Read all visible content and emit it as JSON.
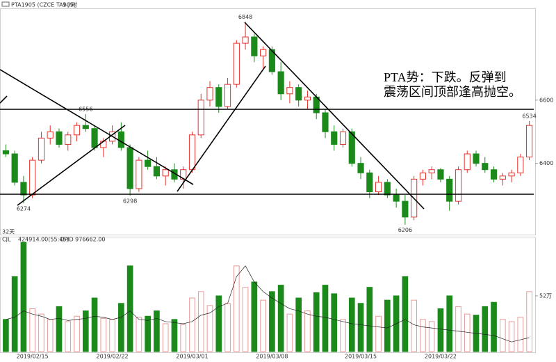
{
  "header": {
    "symbol": "PTA1905 (CZCE TA905)",
    "period": "1小时"
  },
  "chart_data": [
    {
      "type": "candlestick",
      "annotation": [
        "PTA势：下跌。反弹到",
        "震荡区间顶部逢高抛空。"
      ],
      "categories": [
        null,
        null,
        null,
        "2019/02/15",
        null,
        null,
        null,
        null,
        null,
        null,
        null,
        null,
        "2019/02/22",
        null,
        null,
        null,
        null,
        null,
        null,
        null,
        null,
        "2019/03/01",
        null,
        null,
        null,
        null,
        null,
        null,
        null,
        null,
        "2019/03/08",
        null,
        null,
        null,
        null,
        null,
        null,
        null,
        null,
        null,
        "2019/03/15",
        null,
        null,
        null,
        null,
        null,
        null,
        null,
        null,
        "2019/03/22",
        null,
        null,
        null,
        null,
        null,
        null,
        null,
        null,
        null,
        null
      ],
      "open": [
        6440,
        6430,
        6340,
        6300,
        6410,
        6480,
        6500,
        6460,
        6490,
        6520,
        6510,
        6450,
        6470,
        6500,
        6450,
        6320,
        6410,
        6390,
        6360,
        6380,
        6350,
        6380,
        6490,
        6600,
        6640,
        6580,
        6650,
        6780,
        6800,
        6740,
        6760,
        6690,
        6620,
        6640,
        6600,
        6610,
        6560,
        6500,
        6460,
        6500,
        6400,
        6370,
        6310,
        6340,
        6300,
        6280,
        6230,
        6350,
        6370,
        6380,
        6350,
        6280,
        6380,
        6430,
        6400,
        6380,
        6350,
        6360,
        6370,
        6420
      ],
      "high": [
        6460,
        6440,
        6360,
        6420,
        6500,
        6520,
        6510,
        6500,
        6530,
        6556,
        6520,
        6480,
        6520,
        6530,
        6460,
        6420,
        6440,
        6420,
        6390,
        6400,
        6390,
        6500,
        6620,
        6660,
        6650,
        6670,
        6790,
        6848,
        6810,
        6770,
        6770,
        6720,
        6660,
        6650,
        6630,
        6620,
        6570,
        6520,
        6510,
        6510,
        6420,
        6380,
        6360,
        6350,
        6320,
        6300,
        6360,
        6380,
        6390,
        6385,
        6360,
        6390,
        6440,
        6440,
        6420,
        6390,
        6370,
        6380,
        6430,
        6534
      ],
      "low": [
        6420,
        6330,
        6274,
        6290,
        6400,
        6460,
        6450,
        6440,
        6470,
        6500,
        6440,
        6420,
        6460,
        6440,
        6298,
        6310,
        6380,
        6350,
        6330,
        6340,
        6320,
        6370,
        6480,
        6580,
        6560,
        6570,
        6640,
        6760,
        6720,
        6700,
        6680,
        6600,
        6590,
        6580,
        6570,
        6540,
        6480,
        6440,
        6450,
        6390,
        6350,
        6290,
        6300,
        6290,
        6260,
        6206,
        6220,
        6330,
        6350,
        6340,
        6250,
        6270,
        6370,
        6390,
        6370,
        6340,
        6330,
        6340,
        6360,
        6410
      ],
      "close": [
        6430,
        6340,
        6300,
        6410,
        6480,
        6500,
        6460,
        6490,
        6520,
        6510,
        6450,
        6470,
        6500,
        6450,
        6320,
        6410,
        6390,
        6360,
        6380,
        6350,
        6380,
        6490,
        6600,
        6640,
        6580,
        6650,
        6780,
        6800,
        6740,
        6760,
        6690,
        6620,
        6640,
        6600,
        6610,
        6560,
        6500,
        6460,
        6500,
        6400,
        6370,
        6310,
        6340,
        6300,
        6280,
        6230,
        6350,
        6370,
        6380,
        6350,
        6280,
        6380,
        6430,
        6400,
        6380,
        6350,
        6360,
        6370,
        6420,
        6520
      ],
      "price_labels": [
        6274,
        6556,
        6298,
        6848,
        6206,
        6534
      ],
      "up_color": "#e8302a",
      "down_color": "#1b8a1b",
      "ylim": [
        6190,
        6886
      ],
      "yticks": [
        6400,
        6600
      ],
      "range_label": "32天"
    },
    {
      "type": "volume",
      "indicator": "CJL",
      "readout": "424914.00(55:45)",
      "oi_readout": "OPID 976662.00",
      "values": [
        300000,
        700000,
        1020000,
        400000,
        350000,
        300000,
        420000,
        280000,
        330000,
        380000,
        500000,
        310000,
        300000,
        450000,
        800000,
        320000,
        330000,
        380000,
        260000,
        300000,
        250000,
        500000,
        560000,
        430000,
        520000,
        450000,
        800000,
        600000,
        650000,
        480000,
        560000,
        620000,
        350000,
        500000,
        380000,
        550000,
        620000,
        540000,
        300000,
        500000,
        450000,
        600000,
        330000,
        480000,
        520000,
        700000,
        480000,
        300000,
        280000,
        400000,
        520000,
        420000,
        350000,
        340000,
        420000,
        460000,
        300000,
        280000,
        320000,
        560000
      ],
      "open_interest": [
        300000,
        320000,
        380000,
        350000,
        330000,
        300000,
        310000,
        290000,
        300000,
        310000,
        330000,
        320000,
        300000,
        320000,
        380000,
        300000,
        290000,
        310000,
        280000,
        270000,
        260000,
        280000,
        340000,
        360000,
        420000,
        450000,
        700000,
        800000,
        650000,
        560000,
        500000,
        450000,
        400000,
        380000,
        350000,
        330000,
        320000,
        300000,
        280000,
        260000,
        250000,
        240000,
        230000,
        220000,
        260000,
        300000,
        250000,
        230000,
        220000,
        210000,
        200000,
        190000,
        180000,
        170000,
        160000,
        150000,
        120000,
        90000,
        110000,
        130000
      ],
      "oi_color": "#222222",
      "ylim": [
        0,
        1040000
      ],
      "yticks": [
        {
          "value": 520000,
          "label": "52万"
        }
      ]
    }
  ]
}
